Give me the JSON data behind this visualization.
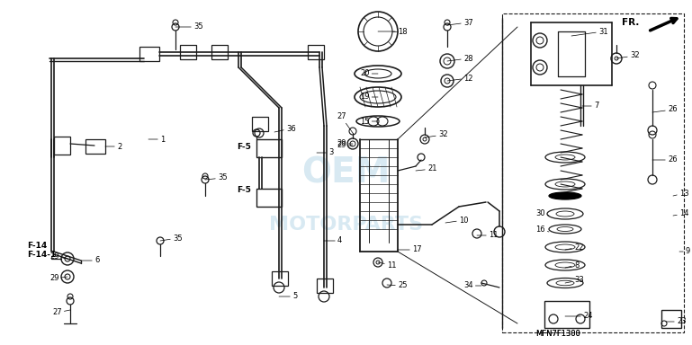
{
  "bg_color": "#ffffff",
  "diagram_color": "#1a1a1a",
  "watermark_lines": [
    "OEM",
    "MOTORPARTS"
  ],
  "watermark_color": "#b8d8e8",
  "fr_label": "FR.",
  "part_code": "MFN7F1300",
  "fig_width": 7.69,
  "fig_height": 3.84,
  "dpi": 100,
  "label_fontsize": 6.0,
  "bold_fontsize": 6.5
}
